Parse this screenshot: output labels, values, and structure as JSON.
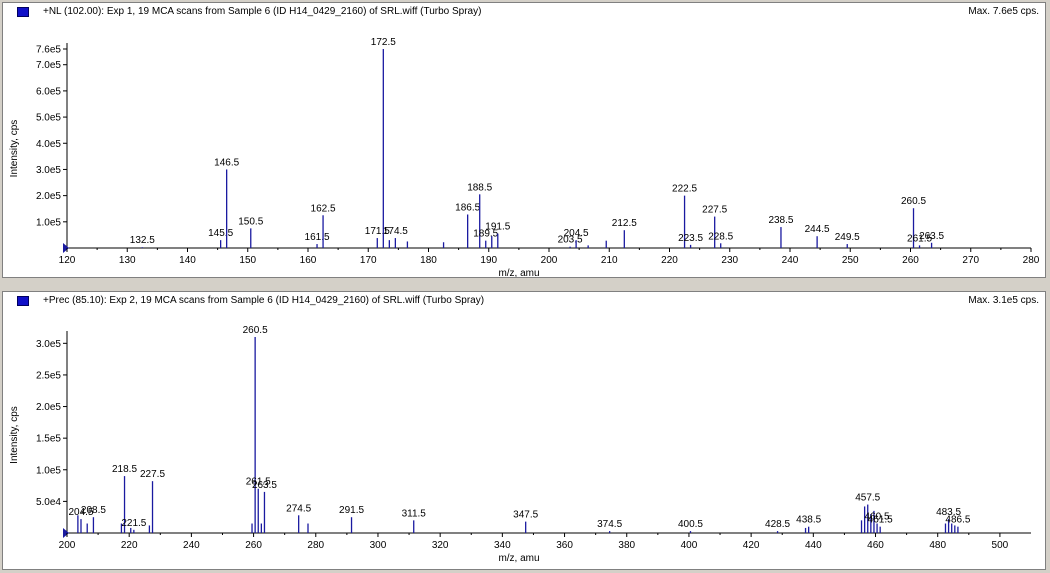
{
  "chart_data": [
    {
      "type": "bar",
      "title": "+NL (102.00): Exp 1, 19 MCA scans from Sample 6 (ID H14_0429_2160) of SRL.wiff (Turbo Spray)",
      "max_label": "Max. 7.6e5 cps.",
      "xlabel": "m/z, amu",
      "ylabel": "Intensity, cps",
      "xlim": [
        120,
        280
      ],
      "ylim": [
        0,
        760000
      ],
      "x_ticks": [
        120,
        130,
        140,
        150,
        160,
        170,
        180,
        190,
        200,
        210,
        220,
        230,
        240,
        250,
        260,
        270,
        280
      ],
      "y_ticks": [
        {
          "value": 100000,
          "label": "1.0e5"
        },
        {
          "value": 200000,
          "label": "2.0e5"
        },
        {
          "value": 300000,
          "label": "3.0e5"
        },
        {
          "value": 400000,
          "label": "4.0e5"
        },
        {
          "value": 500000,
          "label": "5.0e5"
        },
        {
          "value": 600000,
          "label": "6.0e5"
        },
        {
          "value": 700000,
          "label": "7.0e5"
        },
        {
          "value": 760000,
          "label": "7.6e5"
        }
      ],
      "series": [
        {
          "color": "#1a1aa0",
          "points": [
            {
              "x": 132.5,
              "y": 3000,
              "label": "132.5"
            },
            {
              "x": 145.5,
              "y": 30000,
              "label": "145.5"
            },
            {
              "x": 146.5,
              "y": 300000,
              "label": "146.5"
            },
            {
              "x": 150.5,
              "y": 75000,
              "label": "150.5"
            },
            {
              "x": 161.5,
              "y": 15000,
              "label": "161.5"
            },
            {
              "x": 162.5,
              "y": 125000,
              "label": "162.5"
            },
            {
              "x": 171.5,
              "y": 38000,
              "label": "171.5"
            },
            {
              "x": 172.5,
              "y": 760000,
              "label": "172.5"
            },
            {
              "x": 173.5,
              "y": 30000
            },
            {
              "x": 174.5,
              "y": 38000,
              "label": "174.5"
            },
            {
              "x": 176.5,
              "y": 25000
            },
            {
              "x": 182.5,
              "y": 22000
            },
            {
              "x": 186.5,
              "y": 128000,
              "label": "186.5"
            },
            {
              "x": 188.5,
              "y": 205000,
              "label": "188.5"
            },
            {
              "x": 189.5,
              "y": 28000,
              "label": "189.5"
            },
            {
              "x": 190.5,
              "y": 45000
            },
            {
              "x": 191.5,
              "y": 55000,
              "label": "191.5"
            },
            {
              "x": 203.5,
              "y": 5000,
              "label": "203.5"
            },
            {
              "x": 204.5,
              "y": 30000,
              "label": "204.5"
            },
            {
              "x": 206.5,
              "y": 10000
            },
            {
              "x": 209.5,
              "y": 28000
            },
            {
              "x": 212.5,
              "y": 68000,
              "label": "212.5"
            },
            {
              "x": 222.5,
              "y": 200000,
              "label": "222.5"
            },
            {
              "x": 223.5,
              "y": 12000,
              "label": "223.5"
            },
            {
              "x": 227.5,
              "y": 120000,
              "label": "227.5"
            },
            {
              "x": 228.5,
              "y": 18000,
              "label": "228.5"
            },
            {
              "x": 238.5,
              "y": 80000,
              "label": "238.5"
            },
            {
              "x": 244.5,
              "y": 45000,
              "label": "244.5"
            },
            {
              "x": 249.5,
              "y": 15000,
              "label": "249.5"
            },
            {
              "x": 260.5,
              "y": 152000,
              "label": "260.5"
            },
            {
              "x": 261.5,
              "y": 10000,
              "label": "261.5"
            },
            {
              "x": 263.5,
              "y": 20000,
              "label": "263.5"
            }
          ]
        }
      ]
    },
    {
      "type": "bar",
      "title": "+Prec (85.10): Exp 2, 19 MCA scans from Sample 6 (ID H14_0429_2160) of SRL.wiff (Turbo Spray)",
      "max_label": "Max. 3.1e5 cps.",
      "xlabel": "m/z, amu",
      "ylabel": "Intensity, cps",
      "xlim": [
        200,
        510
      ],
      "ylim": [
        0,
        310000
      ],
      "x_ticks": [
        200,
        220,
        240,
        260,
        280,
        300,
        320,
        340,
        360,
        380,
        400,
        420,
        440,
        460,
        480,
        500
      ],
      "y_ticks": [
        {
          "value": 50000,
          "label": "5.0e4"
        },
        {
          "value": 100000,
          "label": "1.0e5"
        },
        {
          "value": 150000,
          "label": "1.5e5"
        },
        {
          "value": 200000,
          "label": "2.0e5"
        },
        {
          "value": 250000,
          "label": "2.5e5"
        },
        {
          "value": 300000,
          "label": "3.0e5"
        }
      ],
      "series": [
        {
          "color": "#1a1aa0",
          "points": [
            {
              "x": 203.5,
              "y": 28000
            },
            {
              "x": 204.5,
              "y": 22000,
              "label": "204.5"
            },
            {
              "x": 206.5,
              "y": 15000
            },
            {
              "x": 208.5,
              "y": 25000,
              "label": "208.5"
            },
            {
              "x": 217.5,
              "y": 15000
            },
            {
              "x": 218.5,
              "y": 90000,
              "label": "218.5"
            },
            {
              "x": 220.5,
              "y": 8000
            },
            {
              "x": 221.5,
              "y": 5000,
              "label": "221.5"
            },
            {
              "x": 226.5,
              "y": 12000
            },
            {
              "x": 227.5,
              "y": 82000,
              "label": "227.5"
            },
            {
              "x": 259.5,
              "y": 15000
            },
            {
              "x": 260.5,
              "y": 310000,
              "label": "260.5"
            },
            {
              "x": 261.5,
              "y": 70000,
              "label": "261.5"
            },
            {
              "x": 262.5,
              "y": 15000
            },
            {
              "x": 263.5,
              "y": 65000,
              "label": "263.5"
            },
            {
              "x": 274.5,
              "y": 28000,
              "label": "274.5"
            },
            {
              "x": 277.5,
              "y": 15000
            },
            {
              "x": 291.5,
              "y": 25000,
              "label": "291.5"
            },
            {
              "x": 311.5,
              "y": 20000,
              "label": "311.5"
            },
            {
              "x": 347.5,
              "y": 18000,
              "label": "347.5"
            },
            {
              "x": 374.5,
              "y": 3000,
              "label": "374.5"
            },
            {
              "x": 400.5,
              "y": 3000,
              "label": "400.5"
            },
            {
              "x": 428.5,
              "y": 3000,
              "label": "428.5"
            },
            {
              "x": 437.5,
              "y": 8000
            },
            {
              "x": 438.5,
              "y": 10000,
              "label": "438.5"
            },
            {
              "x": 455.5,
              "y": 20000
            },
            {
              "x": 456.5,
              "y": 42000
            },
            {
              "x": 457.5,
              "y": 45000,
              "label": "457.5"
            },
            {
              "x": 458.5,
              "y": 30000
            },
            {
              "x": 459.5,
              "y": 35000
            },
            {
              "x": 460.5,
              "y": 15000,
              "label": "460.5"
            },
            {
              "x": 461.5,
              "y": 10000,
              "label": "461.5"
            },
            {
              "x": 482.5,
              "y": 15000
            },
            {
              "x": 483.5,
              "y": 22000,
              "label": "483.5"
            },
            {
              "x": 484.5,
              "y": 15000
            },
            {
              "x": 485.5,
              "y": 12000
            },
            {
              "x": 486.5,
              "y": 10000,
              "label": "486.5"
            }
          ]
        }
      ]
    }
  ]
}
